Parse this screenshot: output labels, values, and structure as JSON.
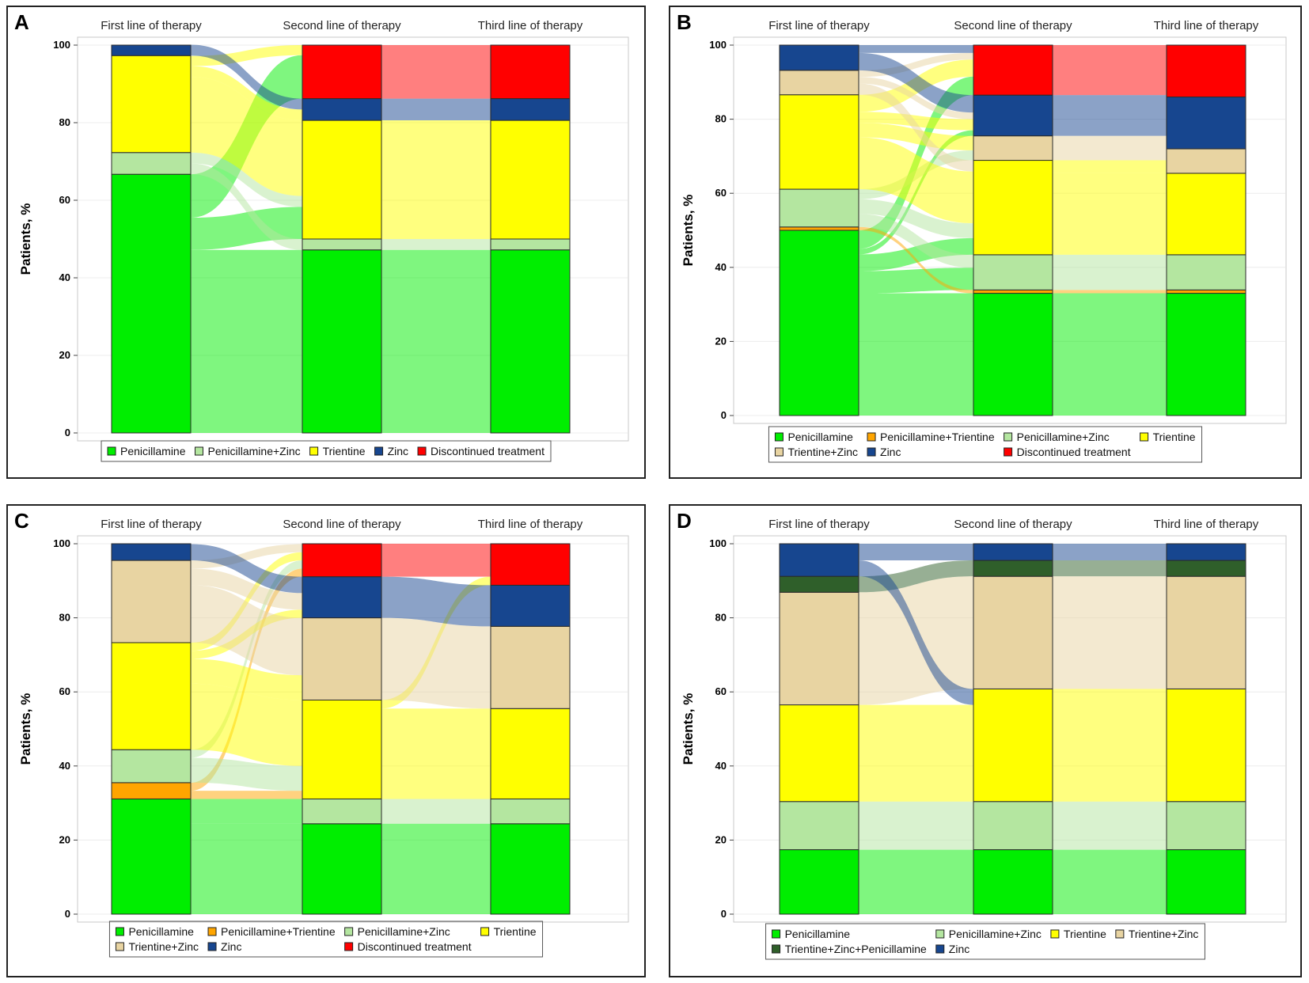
{
  "figure": {
    "panel_letters": [
      "A",
      "B",
      "C",
      "D"
    ]
  },
  "colors": {
    "Penicillamine": "#00ee00",
    "Penicillamine+Trientine": "#ffa500",
    "Penicillamine+Zinc": "#b4e6a0",
    "Trientine": "#ffff00",
    "Trientine+Zinc": "#e8d4a2",
    "Trientine+Zinc+Penicillamine": "#2f5f2a",
    "Zinc": "#17468f",
    "Discontinued treatment": "#ff0000"
  },
  "chart_data": [
    {
      "panel": "A",
      "type": "alluvial",
      "ylabel": "Patients, %",
      "ylim": [
        0,
        100
      ],
      "yticks": [
        0,
        20,
        40,
        60,
        80,
        100
      ],
      "columns": [
        "First line of therapy",
        "Second line of therapy",
        "Third line of therapy"
      ],
      "legend": [
        "Penicillamine",
        "Penicillamine+Zinc",
        "Trientine",
        "Zinc",
        "Discontinued treatment"
      ],
      "stacks": [
        [
          [
            "Penicillamine",
            66.7
          ],
          [
            "Penicillamine+Zinc",
            5.6
          ],
          [
            "Trientine",
            25.0
          ],
          [
            "Zinc",
            2.7
          ]
        ],
        [
          [
            "Penicillamine",
            47.2
          ],
          [
            "Penicillamine+Zinc",
            2.8
          ],
          [
            "Trientine",
            30.6
          ],
          [
            "Zinc",
            5.6
          ],
          [
            "Discontinued treatment",
            13.8
          ]
        ],
        [
          [
            "Penicillamine",
            47.2
          ],
          [
            "Penicillamine+Zinc",
            2.8
          ],
          [
            "Trientine",
            30.6
          ],
          [
            "Zinc",
            5.6
          ],
          [
            "Discontinued treatment",
            13.8
          ]
        ]
      ],
      "flows": [
        [
          [
            "Penicillamine",
            "Penicillamine",
            47.2
          ],
          [
            "Penicillamine",
            "Trientine",
            8.3
          ],
          [
            "Penicillamine",
            "Discontinued treatment",
            11.2
          ],
          [
            "Penicillamine+Zinc",
            "Penicillamine+Zinc",
            2.8
          ],
          [
            "Penicillamine+Zinc",
            "Trientine",
            2.8
          ],
          [
            "Trientine",
            "Trientine",
            19.5
          ],
          [
            "Trientine",
            "Zinc",
            2.8
          ],
          [
            "Trientine",
            "Discontinued treatment",
            2.6
          ],
          [
            "Zinc",
            "Zinc",
            2.8
          ]
        ],
        [
          [
            "Penicillamine",
            "Penicillamine",
            47.2
          ],
          [
            "Penicillamine+Zinc",
            "Penicillamine+Zinc",
            2.8
          ],
          [
            "Trientine",
            "Trientine",
            30.6
          ],
          [
            "Zinc",
            "Zinc",
            5.6
          ],
          [
            "Discontinued treatment",
            "Discontinued treatment",
            13.8
          ]
        ]
      ]
    },
    {
      "panel": "B",
      "type": "alluvial",
      "ylabel": "Patients, %",
      "ylim": [
        0,
        100
      ],
      "yticks": [
        0,
        20,
        40,
        60,
        80,
        100
      ],
      "columns": [
        "First line of therapy",
        "Second line of therapy",
        "Third line of therapy"
      ],
      "legend": [
        "Penicillamine",
        "Penicillamine+Trientine",
        "Penicillamine+Zinc",
        "Trientine",
        "Trientine+Zinc",
        "Zinc",
        "Discontinued treatment"
      ],
      "stacks": [
        [
          [
            "Penicillamine",
            50.0
          ],
          [
            "Penicillamine+Trientine",
            0.9
          ],
          [
            "Penicillamine+Zinc",
            10.2
          ],
          [
            "Trientine",
            25.5
          ],
          [
            "Trientine+Zinc",
            6.6
          ],
          [
            "Zinc",
            6.8
          ]
        ],
        [
          [
            "Penicillamine",
            33.0
          ],
          [
            "Penicillamine+Trientine",
            0.9
          ],
          [
            "Penicillamine+Zinc",
            9.5
          ],
          [
            "Trientine",
            25.5
          ],
          [
            "Trientine+Zinc",
            6.6
          ],
          [
            "Zinc",
            11.0
          ],
          [
            "Discontinued treatment",
            13.5
          ]
        ],
        [
          [
            "Penicillamine",
            33.0
          ],
          [
            "Penicillamine+Trientine",
            0.9
          ],
          [
            "Penicillamine+Zinc",
            9.5
          ],
          [
            "Trientine",
            22.0
          ],
          [
            "Trientine+Zinc",
            6.6
          ],
          [
            "Zinc",
            14.0
          ],
          [
            "Discontinued treatment",
            14.0
          ]
        ]
      ],
      "flows": [
        [
          [
            "Penicillamine",
            "Penicillamine",
            33.0
          ],
          [
            "Penicillamine",
            "Penicillamine+Zinc",
            6.0
          ],
          [
            "Penicillamine",
            "Trientine",
            4.5
          ],
          [
            "Penicillamine",
            "Zinc",
            1.5
          ],
          [
            "Penicillamine",
            "Discontinued treatment",
            5.0
          ],
          [
            "Penicillamine+Trientine",
            "Penicillamine+Trientine",
            0.9
          ],
          [
            "Penicillamine+Zinc",
            "Penicillamine+Zinc",
            3.5
          ],
          [
            "Penicillamine+Zinc",
            "Trientine",
            4.0
          ],
          [
            "Penicillamine+Zinc",
            "Trientine+Zinc",
            2.7
          ],
          [
            "Trientine",
            "Trientine",
            14.0
          ],
          [
            "Trientine",
            "Trientine+Zinc",
            3.9
          ],
          [
            "Trientine",
            "Zinc",
            3.0
          ],
          [
            "Trientine",
            "Discontinued treatment",
            4.6
          ],
          [
            "Trientine+Zinc",
            "Trientine",
            3.0
          ],
          [
            "Trientine+Zinc",
            "Zinc",
            1.8
          ],
          [
            "Trientine+Zinc",
            "Discontinued treatment",
            1.8
          ],
          [
            "Zinc",
            "Zinc",
            4.7
          ],
          [
            "Zinc",
            "Discontinued treatment",
            2.1
          ]
        ],
        [
          [
            "Penicillamine",
            "Penicillamine",
            33.0
          ],
          [
            "Penicillamine+Trientine",
            "Penicillamine+Trientine",
            0.9
          ],
          [
            "Penicillamine+Zinc",
            "Penicillamine+Zinc",
            9.5
          ],
          [
            "Trientine",
            "Trientine",
            22.0
          ],
          [
            "Trientine",
            "Trientine+Zinc",
            3.5
          ],
          [
            "Trientine+Zinc",
            "Trientine+Zinc",
            3.1
          ],
          [
            "Trientine+Zinc",
            "Zinc",
            3.5
          ],
          [
            "Zinc",
            "Zinc",
            10.5
          ],
          [
            "Zinc",
            "Discontinued treatment",
            0.5
          ],
          [
            "Discontinued treatment",
            "Discontinued treatment",
            13.5
          ]
        ]
      ]
    },
    {
      "panel": "C",
      "type": "alluvial",
      "ylabel": "Patients, %",
      "ylim": [
        0,
        100
      ],
      "yticks": [
        0,
        20,
        40,
        60,
        80,
        100
      ],
      "columns": [
        "First line of therapy",
        "Second line of therapy",
        "Third line of therapy"
      ],
      "legend": [
        "Penicillamine",
        "Penicillamine+Trientine",
        "Penicillamine+Zinc",
        "Trientine",
        "Trientine+Zinc",
        "Zinc",
        "Discontinued treatment"
      ],
      "stacks": [
        [
          [
            "Penicillamine",
            31.1
          ],
          [
            "Penicillamine+Trientine",
            4.4
          ],
          [
            "Penicillamine+Zinc",
            8.9
          ],
          [
            "Trientine",
            28.9
          ],
          [
            "Trientine+Zinc",
            22.2
          ],
          [
            "Zinc",
            4.5
          ]
        ],
        [
          [
            "Penicillamine",
            24.4
          ],
          [
            "Penicillamine+Zinc",
            6.7
          ],
          [
            "Trientine",
            26.7
          ],
          [
            "Trientine+Zinc",
            22.2
          ],
          [
            "Zinc",
            11.1
          ],
          [
            "Discontinued treatment",
            8.9
          ]
        ],
        [
          [
            "Penicillamine",
            24.4
          ],
          [
            "Penicillamine+Zinc",
            6.7
          ],
          [
            "Trientine",
            24.4
          ],
          [
            "Trientine+Zinc",
            22.2
          ],
          [
            "Zinc",
            11.1
          ],
          [
            "Discontinued treatment",
            11.2
          ]
        ]
      ],
      "flows": [
        [
          [
            "Penicillamine",
            "Penicillamine",
            24.4
          ],
          [
            "Penicillamine",
            "Penicillamine+Zinc",
            6.7
          ],
          [
            "Penicillamine+Trientine",
            "Trientine",
            2.2
          ],
          [
            "Penicillamine+Trientine",
            "Discontinued treatment",
            2.2
          ],
          [
            "Penicillamine+Zinc",
            "Trientine",
            6.7
          ],
          [
            "Penicillamine+Zinc",
            "Discontinued treatment",
            2.2
          ],
          [
            "Trientine",
            "Trientine",
            17.8
          ],
          [
            "Trientine",
            "Trientine+Zinc",
            6.7
          ],
          [
            "Trientine",
            "Zinc",
            2.2
          ],
          [
            "Trientine",
            "Discontinued treatment",
            2.2
          ],
          [
            "Trientine+Zinc",
            "Trientine+Zinc",
            15.5
          ],
          [
            "Trientine+Zinc",
            "Zinc",
            4.5
          ],
          [
            "Trientine+Zinc",
            "Discontinued treatment",
            2.2
          ],
          [
            "Zinc",
            "Zinc",
            4.4
          ]
        ],
        [
          [
            "Penicillamine",
            "Penicillamine",
            24.4
          ],
          [
            "Penicillamine+Zinc",
            "Penicillamine+Zinc",
            6.7
          ],
          [
            "Trientine",
            "Trientine",
            24.4
          ],
          [
            "Trientine",
            "Discontinued treatment",
            2.3
          ],
          [
            "Trientine+Zinc",
            "Trientine+Zinc",
            22.2
          ],
          [
            "Zinc",
            "Zinc",
            11.1
          ],
          [
            "Discontinued treatment",
            "Discontinued treatment",
            8.9
          ]
        ]
      ]
    },
    {
      "panel": "D",
      "type": "alluvial",
      "ylabel": "Patients, %",
      "ylim": [
        0,
        100
      ],
      "yticks": [
        0,
        20,
        40,
        60,
        80,
        100
      ],
      "columns": [
        "First line of therapy",
        "Second line of therapy",
        "Third line of therapy"
      ],
      "legend": [
        "Penicillamine",
        "Penicillamine+Zinc",
        "Trientine",
        "Trientine+Zinc",
        "Trientine+Zinc+Penicillamine",
        "Zinc"
      ],
      "stacks": [
        [
          [
            "Penicillamine",
            17.4
          ],
          [
            "Penicillamine+Zinc",
            13.0
          ],
          [
            "Trientine",
            26.1
          ],
          [
            "Trientine+Zinc",
            30.4
          ],
          [
            "Trientine+Zinc+Penicillamine",
            4.3
          ],
          [
            "Zinc",
            8.8
          ]
        ],
        [
          [
            "Penicillamine",
            17.4
          ],
          [
            "Penicillamine+Zinc",
            13.0
          ],
          [
            "Trientine",
            30.4
          ],
          [
            "Trientine+Zinc",
            30.4
          ],
          [
            "Trientine+Zinc+Penicillamine",
            4.3
          ],
          [
            "Zinc",
            4.5
          ]
        ],
        [
          [
            "Penicillamine",
            17.4
          ],
          [
            "Penicillamine+Zinc",
            13.0
          ],
          [
            "Trientine",
            30.4
          ],
          [
            "Trientine+Zinc",
            30.4
          ],
          [
            "Trientine+Zinc+Penicillamine",
            4.3
          ],
          [
            "Zinc",
            4.5
          ]
        ]
      ],
      "flows": [
        [
          [
            "Penicillamine",
            "Penicillamine",
            17.4
          ],
          [
            "Penicillamine+Zinc",
            "Penicillamine+Zinc",
            13.0
          ],
          [
            "Trientine",
            "Trientine",
            26.1
          ],
          [
            "Trientine+Zinc",
            "Trientine+Zinc",
            30.4
          ],
          [
            "Trientine+Zinc+Penicillamine",
            "Trientine+Zinc+Penicillamine",
            4.3
          ],
          [
            "Zinc",
            "Trientine",
            4.3
          ],
          [
            "Zinc",
            "Zinc",
            4.5
          ]
        ],
        [
          [
            "Penicillamine",
            "Penicillamine",
            17.4
          ],
          [
            "Penicillamine+Zinc",
            "Penicillamine+Zinc",
            13.0
          ],
          [
            "Trientine",
            "Trientine",
            30.4
          ],
          [
            "Trientine+Zinc",
            "Trientine+Zinc",
            30.4
          ],
          [
            "Trientine+Zinc+Penicillamine",
            "Trientine+Zinc+Penicillamine",
            4.3
          ],
          [
            "Zinc",
            "Zinc",
            4.5
          ]
        ]
      ]
    }
  ]
}
